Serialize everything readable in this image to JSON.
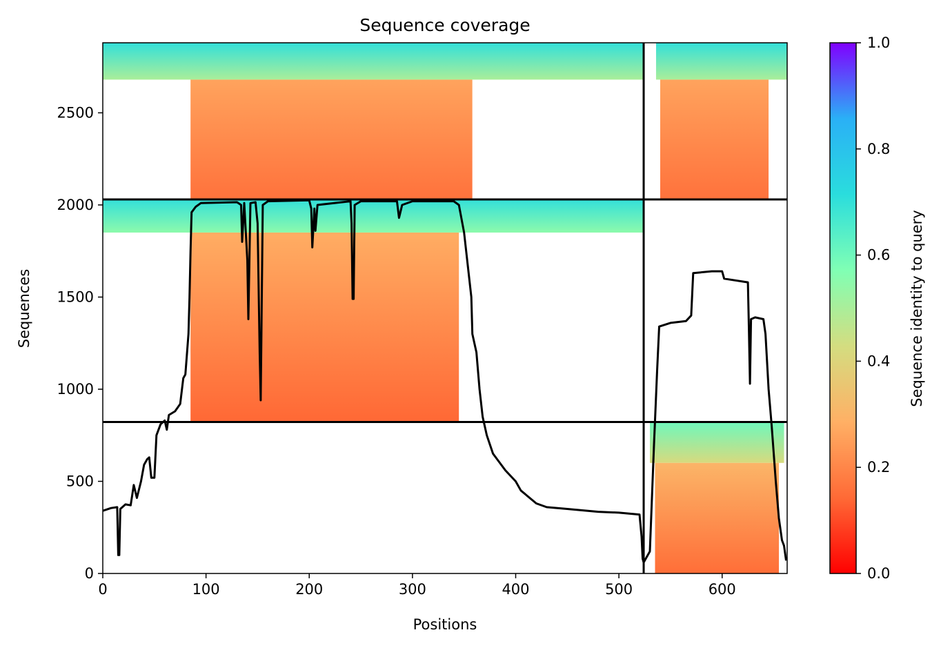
{
  "chart_data": {
    "type": "heatmap",
    "title": "Sequence coverage",
    "xlabel": "Positions",
    "ylabel": "Sequences",
    "xlim": [
      0,
      663
    ],
    "ylim": [
      0,
      2880
    ],
    "x_ticks": [
      0,
      100,
      200,
      300,
      400,
      500,
      600
    ],
    "y_ticks": [
      0,
      500,
      1000,
      1500,
      2000,
      2500
    ],
    "colorbar": {
      "label": "Sequence identity to query",
      "range": [
        0.0,
        1.0
      ],
      "ticks": [
        "0.0",
        "0.2",
        "0.4",
        "0.6",
        "0.8",
        "1.0"
      ],
      "colormap": "rainbow_r",
      "colors": [
        "#ff0000",
        "#ff6a36",
        "#ffb065",
        "#d4dd80",
        "#80ffb4",
        "#2adddd",
        "#2ab0f6",
        "#8000ff"
      ]
    },
    "boundaries": {
      "x": [
        524
      ],
      "y": [
        822,
        2030
      ]
    },
    "blocks": [
      {
        "x_start": 0,
        "x_end": 524,
        "y_start": 2030,
        "y_end": 2880,
        "bands": [
          {
            "y_start": 2680,
            "y_end": 2880,
            "identity_top": 0.7,
            "identity_bottom": 0.5,
            "x_start": 0,
            "x_end": 524
          },
          {
            "y_start": 2030,
            "y_end": 2680,
            "identity_top": 0.26,
            "identity_bottom": 0.16,
            "x_start": 85,
            "x_end": 358
          }
        ]
      },
      {
        "x_start": 524,
        "x_end": 663,
        "y_start": 2030,
        "y_end": 2880,
        "bands": [
          {
            "y_start": 2680,
            "y_end": 2880,
            "identity_top": 0.7,
            "identity_bottom": 0.5,
            "x_start": 536,
            "x_end": 663
          },
          {
            "y_start": 2030,
            "y_end": 2680,
            "identity_top": 0.26,
            "identity_bottom": 0.16,
            "x_start": 540,
            "x_end": 645
          }
        ]
      },
      {
        "x_start": 0,
        "x_end": 524,
        "y_start": 822,
        "y_end": 2030,
        "bands": [
          {
            "y_start": 1850,
            "y_end": 2030,
            "identity_top": 0.7,
            "identity_bottom": 0.55,
            "x_start": 0,
            "x_end": 524
          },
          {
            "y_start": 822,
            "y_end": 1850,
            "identity_top": 0.28,
            "identity_bottom": 0.14,
            "x_start": 85,
            "x_end": 345
          }
        ]
      },
      {
        "x_start": 524,
        "x_end": 663,
        "y_start": 0,
        "y_end": 822,
        "bands": [
          {
            "y_start": 600,
            "y_end": 822,
            "identity_top": 0.6,
            "identity_bottom": 0.42,
            "x_start": 530,
            "x_end": 660
          },
          {
            "y_start": 0,
            "y_end": 600,
            "identity_top": 0.3,
            "identity_bottom": 0.15,
            "x_start": 535,
            "x_end": 655
          }
        ]
      }
    ],
    "coverage_line": [
      [
        0,
        340
      ],
      [
        8,
        355
      ],
      [
        14,
        360
      ],
      [
        15,
        100
      ],
      [
        16,
        100
      ],
      [
        17,
        350
      ],
      [
        22,
        375
      ],
      [
        27,
        370
      ],
      [
        30,
        480
      ],
      [
        33,
        410
      ],
      [
        37,
        500
      ],
      [
        40,
        590
      ],
      [
        43,
        620
      ],
      [
        45,
        630
      ],
      [
        47,
        520
      ],
      [
        50,
        520
      ],
      [
        52,
        750
      ],
      [
        56,
        810
      ],
      [
        60,
        830
      ],
      [
        62,
        780
      ],
      [
        64,
        860
      ],
      [
        70,
        880
      ],
      [
        75,
        920
      ],
      [
        78,
        1060
      ],
      [
        80,
        1080
      ],
      [
        83,
        1300
      ],
      [
        84,
        1500
      ],
      [
        85,
        1750
      ],
      [
        86,
        1960
      ],
      [
        90,
        1990
      ],
      [
        95,
        2010
      ],
      [
        130,
        2015
      ],
      [
        134,
        2000
      ],
      [
        135,
        1800
      ],
      [
        137,
        2010
      ],
      [
        140,
        1700
      ],
      [
        141,
        1380
      ],
      [
        143,
        2010
      ],
      [
        148,
        2015
      ],
      [
        150,
        1900
      ],
      [
        152,
        1200
      ],
      [
        153,
        940
      ],
      [
        155,
        2000
      ],
      [
        160,
        2020
      ],
      [
        200,
        2025
      ],
      [
        202,
        1980
      ],
      [
        203,
        1770
      ],
      [
        205,
        1980
      ],
      [
        206,
        1860
      ],
      [
        208,
        2000
      ],
      [
        240,
        2020
      ],
      [
        241,
        1900
      ],
      [
        242,
        1490
      ],
      [
        243,
        1490
      ],
      [
        244,
        2000
      ],
      [
        250,
        2020
      ],
      [
        285,
        2020
      ],
      [
        287,
        1930
      ],
      [
        290,
        2000
      ],
      [
        300,
        2020
      ],
      [
        340,
        2020
      ],
      [
        345,
        2000
      ],
      [
        350,
        1850
      ],
      [
        355,
        1600
      ],
      [
        357,
        1500
      ],
      [
        358,
        1300
      ],
      [
        362,
        1200
      ],
      [
        365,
        1000
      ],
      [
        368,
        850
      ],
      [
        372,
        750
      ],
      [
        378,
        650
      ],
      [
        390,
        560
      ],
      [
        400,
        500
      ],
      [
        405,
        450
      ],
      [
        420,
        380
      ],
      [
        430,
        360
      ],
      [
        450,
        350
      ],
      [
        470,
        340
      ],
      [
        480,
        335
      ],
      [
        500,
        330
      ],
      [
        520,
        320
      ],
      [
        522,
        200
      ],
      [
        523,
        80
      ],
      [
        524,
        60
      ],
      [
        530,
        120
      ],
      [
        534,
        700
      ],
      [
        537,
        1100
      ],
      [
        539,
        1340
      ],
      [
        550,
        1360
      ],
      [
        565,
        1370
      ],
      [
        570,
        1400
      ],
      [
        572,
        1630
      ],
      [
        590,
        1640
      ],
      [
        600,
        1640
      ],
      [
        602,
        1600
      ],
      [
        625,
        1580
      ],
      [
        626,
        1320
      ],
      [
        627,
        1030
      ],
      [
        628,
        1380
      ],
      [
        632,
        1390
      ],
      [
        640,
        1380
      ],
      [
        642,
        1300
      ],
      [
        645,
        1000
      ],
      [
        648,
        800
      ],
      [
        652,
        500
      ],
      [
        655,
        300
      ],
      [
        658,
        180
      ],
      [
        660,
        150
      ],
      [
        662,
        70
      ]
    ]
  }
}
